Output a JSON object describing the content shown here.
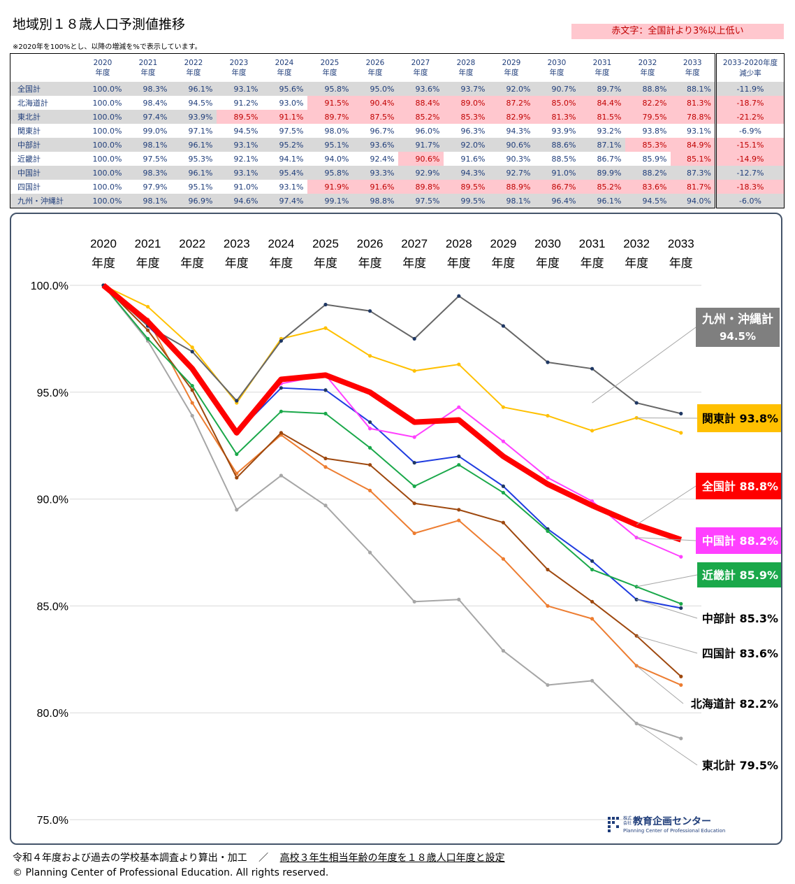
{
  "title": "地域別１８歳人口予測値推移",
  "note": "※2020年を100%とし、以降の増減を%で表示しています。",
  "legend_note": "赤文字：全国計より3%以上低い",
  "table": {
    "year_headers": [
      {
        "year": "2020",
        "unit": "年度"
      },
      {
        "year": "2021",
        "unit": "年度"
      },
      {
        "year": "2022",
        "unit": "年度"
      },
      {
        "year": "2023",
        "unit": "年度"
      },
      {
        "year": "2024",
        "unit": "年度"
      },
      {
        "year": "2025",
        "unit": "年度"
      },
      {
        "year": "2026",
        "unit": "年度"
      },
      {
        "year": "2027",
        "unit": "年度"
      },
      {
        "year": "2028",
        "unit": "年度"
      },
      {
        "year": "2029",
        "unit": "年度"
      },
      {
        "year": "2030",
        "unit": "年度"
      },
      {
        "year": "2031",
        "unit": "年度"
      },
      {
        "year": "2032",
        "unit": "年度"
      },
      {
        "year": "2033",
        "unit": "年度"
      }
    ],
    "last_header": {
      "line1": "2033-2020年度",
      "line2": "減少率"
    },
    "rows": [
      {
        "name": "全国計",
        "values": [
          "100.0%",
          "98.3%",
          "96.1%",
          "93.1%",
          "95.6%",
          "95.8%",
          "95.0%",
          "93.6%",
          "93.7%",
          "92.0%",
          "90.7%",
          "89.7%",
          "88.8%",
          "88.1%"
        ],
        "low": [],
        "change": "-11.9%",
        "change_low": false
      },
      {
        "name": "北海道計",
        "values": [
          "100.0%",
          "98.4%",
          "94.5%",
          "91.2%",
          "93.0%",
          "91.5%",
          "90.4%",
          "88.4%",
          "89.0%",
          "87.2%",
          "85.0%",
          "84.4%",
          "82.2%",
          "81.3%"
        ],
        "low": [
          5,
          6,
          7,
          8,
          9,
          10,
          11,
          12,
          13
        ],
        "change": "-18.7%",
        "change_low": true
      },
      {
        "name": "東北計",
        "values": [
          "100.0%",
          "97.4%",
          "93.9%",
          "89.5%",
          "91.1%",
          "89.7%",
          "87.5%",
          "85.2%",
          "85.3%",
          "82.9%",
          "81.3%",
          "81.5%",
          "79.5%",
          "78.8%"
        ],
        "low": [
          3,
          4,
          5,
          6,
          7,
          8,
          9,
          10,
          11,
          12,
          13
        ],
        "change": "-21.2%",
        "change_low": true
      },
      {
        "name": "関東計",
        "values": [
          "100.0%",
          "99.0%",
          "97.1%",
          "94.5%",
          "97.5%",
          "98.0%",
          "96.7%",
          "96.0%",
          "96.3%",
          "94.3%",
          "93.9%",
          "93.2%",
          "93.8%",
          "93.1%"
        ],
        "low": [],
        "change": "-6.9%",
        "change_low": false
      },
      {
        "name": "中部計",
        "values": [
          "100.0%",
          "98.1%",
          "96.1%",
          "93.1%",
          "95.2%",
          "95.1%",
          "93.6%",
          "91.7%",
          "92.0%",
          "90.6%",
          "88.6%",
          "87.1%",
          "85.3%",
          "84.9%"
        ],
        "low": [
          12,
          13
        ],
        "change": "-15.1%",
        "change_low": true
      },
      {
        "name": "近畿計",
        "values": [
          "100.0%",
          "97.5%",
          "95.3%",
          "92.1%",
          "94.1%",
          "94.0%",
          "92.4%",
          "90.6%",
          "91.6%",
          "90.3%",
          "88.5%",
          "86.7%",
          "85.9%",
          "85.1%"
        ],
        "low": [
          7,
          13
        ],
        "change": "-14.9%",
        "change_low": true
      },
      {
        "name": "中国計",
        "values": [
          "100.0%",
          "98.3%",
          "96.1%",
          "93.1%",
          "95.4%",
          "95.8%",
          "93.3%",
          "92.9%",
          "94.3%",
          "92.7%",
          "91.0%",
          "89.9%",
          "88.2%",
          "87.3%"
        ],
        "low": [],
        "change": "-12.7%",
        "change_low": false
      },
      {
        "name": "四国計",
        "values": [
          "100.0%",
          "97.9%",
          "95.1%",
          "91.0%",
          "93.1%",
          "91.9%",
          "91.6%",
          "89.8%",
          "89.5%",
          "88.9%",
          "86.7%",
          "85.2%",
          "83.6%",
          "81.7%"
        ],
        "low": [
          5,
          6,
          7,
          8,
          9,
          10,
          11,
          12,
          13
        ],
        "change": "-18.3%",
        "change_low": true
      },
      {
        "name": "九州・沖縄計",
        "values": [
          "100.0%",
          "98.1%",
          "96.9%",
          "94.6%",
          "97.4%",
          "99.1%",
          "98.8%",
          "97.5%",
          "99.5%",
          "98.1%",
          "96.4%",
          "96.1%",
          "94.5%",
          "94.0%"
        ],
        "low": [],
        "change": "-6.0%",
        "change_low": false
      }
    ]
  },
  "chart_data": {
    "type": "line",
    "categories": [
      "2020",
      "2021",
      "2022",
      "2023",
      "2024",
      "2025",
      "2026",
      "2027",
      "2028",
      "2029",
      "2030",
      "2031",
      "2032",
      "2033"
    ],
    "category_unit": "年度",
    "ylim": [
      75,
      100
    ],
    "yticks": [
      "100.0%",
      "95.0%",
      "90.0%",
      "85.0%",
      "80.0%",
      "75.0%"
    ],
    "ytick_values": [
      100,
      95,
      90,
      85,
      80,
      75
    ],
    "grid": true,
    "series": [
      {
        "name": "東北計",
        "color": "#a6a6a6",
        "values": [
          100.0,
          97.4,
          93.9,
          89.5,
          91.1,
          89.7,
          87.5,
          85.2,
          85.3,
          82.9,
          81.3,
          81.5,
          79.5,
          78.8
        ],
        "label": "東北計 79.5%"
      },
      {
        "name": "北海道計",
        "color": "#ed7d31",
        "values": [
          100.0,
          98.4,
          94.5,
          91.2,
          93.0,
          91.5,
          90.4,
          88.4,
          89.0,
          87.2,
          85.0,
          84.4,
          82.2,
          81.3
        ],
        "label": "北海道計 82.2%"
      },
      {
        "name": "四国計",
        "color": "#9e480e",
        "values": [
          100.0,
          97.9,
          95.1,
          91.0,
          93.1,
          91.9,
          91.6,
          89.8,
          89.5,
          88.9,
          86.7,
          85.2,
          83.6,
          81.7
        ],
        "label": "四国計 83.6%"
      },
      {
        "name": "中部計",
        "color": "#1f3ce0",
        "values": [
          100.0,
          98.1,
          96.1,
          93.1,
          95.2,
          95.1,
          93.6,
          91.7,
          92.0,
          90.6,
          88.6,
          87.1,
          85.3,
          84.9
        ],
        "label": "中部計 85.3%"
      },
      {
        "name": "近畿計",
        "color": "#1aa84a",
        "values": [
          100.0,
          97.5,
          95.3,
          92.1,
          94.1,
          94.0,
          92.4,
          90.6,
          91.6,
          90.3,
          88.5,
          86.7,
          85.9,
          85.1
        ],
        "label": "近畿計 85.9%"
      },
      {
        "name": "中国計",
        "color": "#ff40ff",
        "values": [
          100.0,
          98.3,
          96.1,
          93.1,
          95.4,
          95.8,
          93.3,
          92.9,
          94.3,
          92.7,
          91.0,
          89.9,
          88.2,
          87.3
        ],
        "label": "中国計 88.2%"
      },
      {
        "name": "関東計",
        "color": "#ffc000",
        "values": [
          100.0,
          99.0,
          97.1,
          94.5,
          97.5,
          98.0,
          96.7,
          96.0,
          96.3,
          94.3,
          93.9,
          93.2,
          93.8,
          93.1
        ],
        "label": "関東計 93.8%"
      },
      {
        "name": "九州・沖縄計",
        "color": "#666666",
        "values": [
          100.0,
          98.1,
          96.9,
          94.6,
          97.4,
          99.1,
          98.8,
          97.5,
          99.5,
          98.1,
          96.4,
          96.1,
          94.5,
          94.0
        ],
        "label": "九州・沖縄計",
        "label2": "94.5%"
      },
      {
        "name": "全国計",
        "color": "#ff0000",
        "values": [
          100.0,
          98.3,
          96.1,
          93.1,
          95.6,
          95.8,
          95.0,
          93.6,
          93.7,
          92.0,
          90.7,
          89.7,
          88.8,
          88.1
        ],
        "label": "全国計 88.8%",
        "bold": true
      }
    ]
  },
  "logo": {
    "small1": "株式",
    "small2": "会社",
    "name": "教育企画センター",
    "sub": "Planning Center of Professional Education"
  },
  "footer": {
    "source": "令和４年度および過去の学校基本調査より算出・加工",
    "separator": "／",
    "definition": "高校３年生相当年齢の年度を１８歳人口年度と設定",
    "copyright": "© Planning Center of Professional Education. All rights reserved."
  }
}
